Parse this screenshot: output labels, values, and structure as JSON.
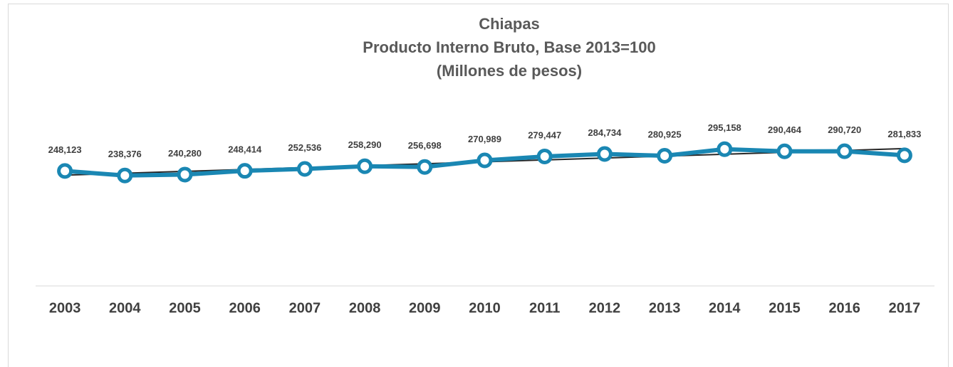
{
  "chart_data": {
    "type": "line",
    "title": [
      "Chiapas",
      "Producto Interno Bruto, Base 2013=100",
      "(Millones de pesos)"
    ],
    "categories": [
      "2003",
      "2004",
      "2005",
      "2006",
      "2007",
      "2008",
      "2009",
      "2010",
      "2011",
      "2012",
      "2013",
      "2014",
      "2015",
      "2016",
      "2017"
    ],
    "values": [
      248123,
      238376,
      240280,
      248414,
      252536,
      258290,
      256698,
      270989,
      279447,
      284734,
      280925,
      295158,
      290464,
      290720,
      281833
    ],
    "value_labels": [
      "248,123",
      "238,376",
      "240,280",
      "248,414",
      "252,536",
      "258,290",
      "256,698",
      "270,989",
      "279,447",
      "284,734",
      "280,925",
      "295,158",
      "290,464",
      "290,720",
      "281,833"
    ],
    "color": "#1a87b3",
    "trendline": true,
    "ylim": [
      0,
      350000
    ]
  }
}
